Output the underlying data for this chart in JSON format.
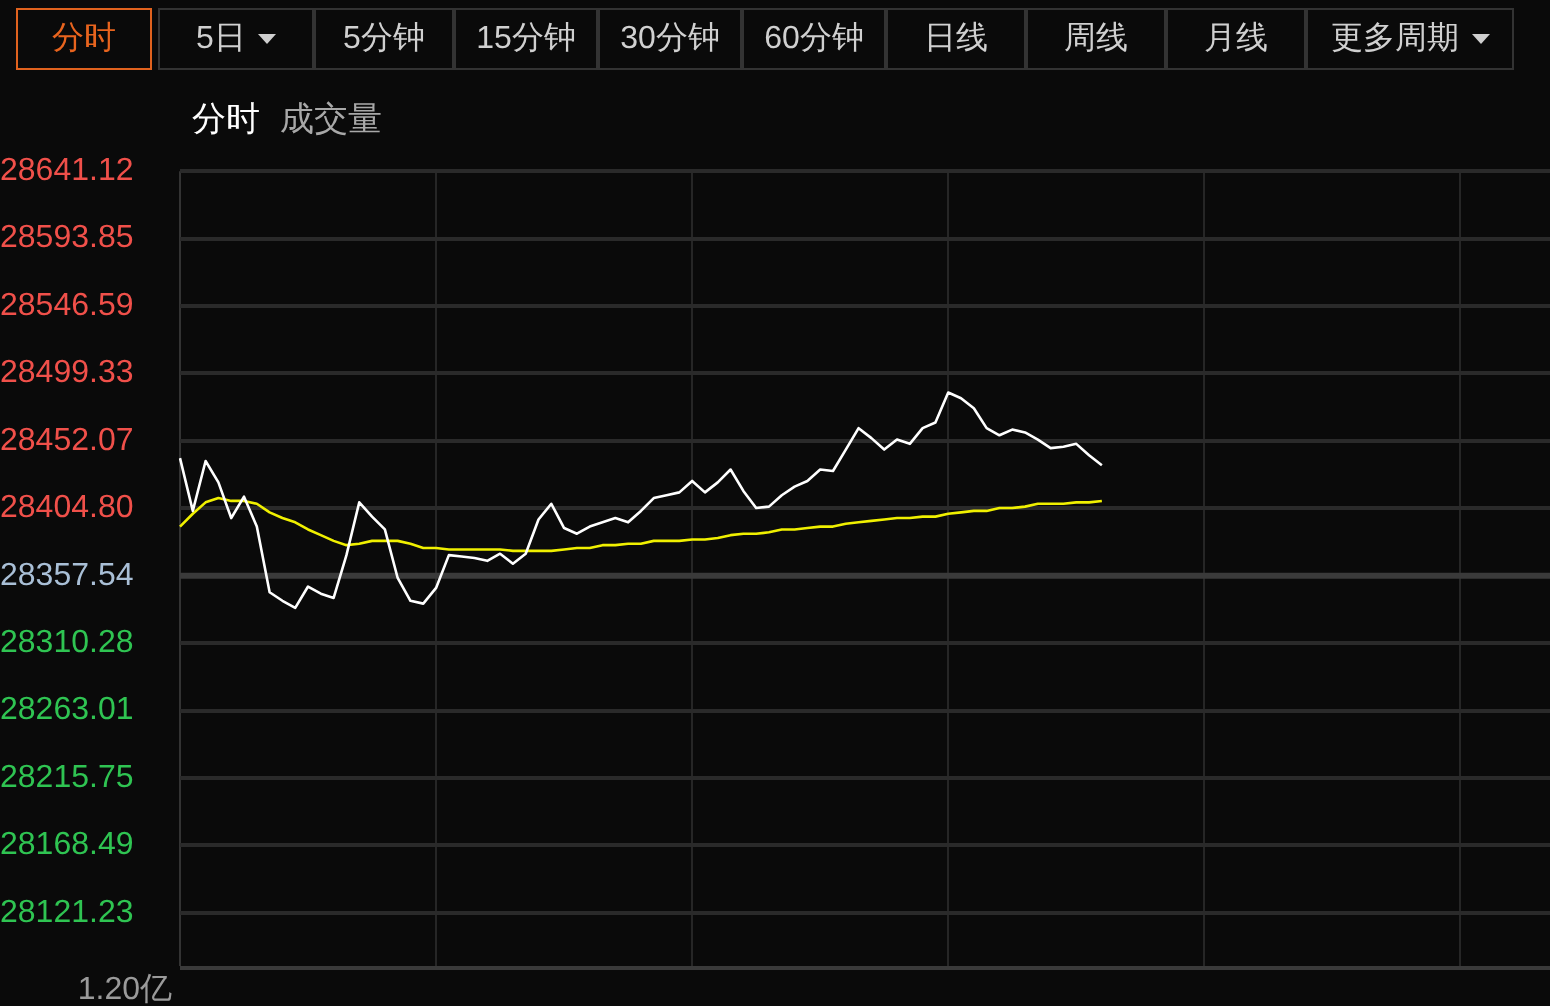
{
  "chart_data": {
    "type": "line",
    "legend": "top left",
    "grid": true,
    "annotations": [
      "分时",
      "5日",
      "5分钟",
      "15分钟",
      "30分钟",
      "60分钟",
      "日线",
      "周线",
      "月线",
      "更多周期",
      "成交量",
      "1.20亿"
    ],
    "categories": [
      null,
      null,
      null,
      null,
      null,
      null,
      null,
      null,
      null,
      null,
      null,
      null,
      null,
      null,
      null,
      null,
      null,
      null,
      null,
      null,
      null,
      null,
      null,
      null,
      null,
      null,
      null,
      null,
      null,
      null,
      null,
      null,
      null,
      null,
      null,
      null,
      null,
      null,
      null,
      null,
      null,
      null,
      null,
      null,
      null,
      null,
      null,
      null,
      null,
      null,
      null,
      null,
      null,
      null,
      null,
      null,
      null,
      null,
      null,
      null,
      null,
      null,
      null,
      null,
      null,
      null,
      null,
      null,
      null,
      null,
      null,
      null,
      null,
      null,
      null,
      null,
      null,
      null,
      null,
      null,
      null,
      null,
      null,
      null,
      null,
      null,
      null,
      null,
      null,
      null,
      null,
      null,
      null,
      null,
      null,
      null,
      null,
      null,
      null,
      null,
      null,
      null,
      null,
      null,
      null,
      null,
      null,
      null
    ],
    "ylim": [
      28084,
      28641.12
    ],
    "yticks": [
      28641.12,
      28593.85,
      28546.59,
      28499.33,
      28452.07,
      {
        "value": 28404.8,
        "label": "28404.80"
      },
      28357.54,
      28310.28,
      28263.01,
      28215.75,
      28168.49,
      28121.23
    ],
    "ref_lines": [
      {
        "axis": "y",
        "value": 28357.54,
        "color": "#3a3a3a"
      }
    ],
    "series": [
      {
        "name": "分时",
        "color": "#ffffff",
        "values": [
          28440,
          28403,
          28438,
          28423,
          28398,
          28413,
          28392,
          28346,
          28340,
          28335,
          28350,
          28345,
          28342,
          28372,
          28409,
          28399,
          28390,
          28356,
          28340,
          28338,
          28349,
          28372,
          28371,
          28370,
          28368,
          28373,
          28366,
          28373,
          28397,
          28408,
          28391,
          28387,
          28392,
          28395,
          28398,
          28395,
          28403,
          28412,
          28414,
          28416,
          28424,
          28416,
          28423,
          28432,
          28417,
          28405,
          28406,
          28414,
          28420,
          28424,
          28432,
          28431,
          28446,
          28461,
          28454,
          28446,
          28453,
          28450,
          28461,
          28465,
          28486,
          28482,
          28475,
          28461,
          28456,
          28460,
          28458,
          28453,
          28447,
          28448,
          28450,
          28442,
          28435,
          null,
          null,
          null,
          null,
          null,
          null,
          null,
          null,
          null,
          null,
          null,
          null,
          null,
          null,
          null,
          null,
          null,
          null,
          null,
          null,
          null,
          null,
          null,
          null,
          null,
          null,
          null,
          null,
          null,
          null,
          null,
          null,
          null,
          null,
          null
        ]
      },
      {
        "color": "#f0f000",
        "values": [
          28392,
          28401,
          28409,
          28412,
          28410,
          28410,
          28408,
          28402,
          28398,
          28395,
          28390,
          28386,
          28382,
          28379,
          28380,
          28382,
          28382,
          28382,
          28380,
          28377,
          28377,
          28376,
          28376,
          28376,
          28376,
          28376,
          28375,
          28375,
          28375,
          28375,
          28376,
          28377,
          28377,
          28379,
          28379,
          28380,
          28380,
          28382,
          28382,
          28382,
          28383,
          28383,
          28384,
          28386,
          28387,
          28387,
          28388,
          28390,
          28390,
          28391,
          28392,
          28392,
          28394,
          28395,
          28396,
          28397,
          28398,
          28398,
          28399,
          28399,
          28401,
          28402,
          28403,
          28403,
          28405,
          28405,
          28406,
          28408,
          28408,
          28408,
          28409,
          28409,
          28410,
          null,
          null,
          null,
          null,
          null,
          null,
          null,
          null,
          null,
          null,
          null,
          null,
          null,
          null,
          null,
          null,
          null,
          null,
          null,
          null,
          null,
          null,
          null,
          null,
          null,
          null,
          null,
          null,
          null,
          null,
          null,
          null,
          null,
          null,
          null
        ]
      }
    ]
  }
}
